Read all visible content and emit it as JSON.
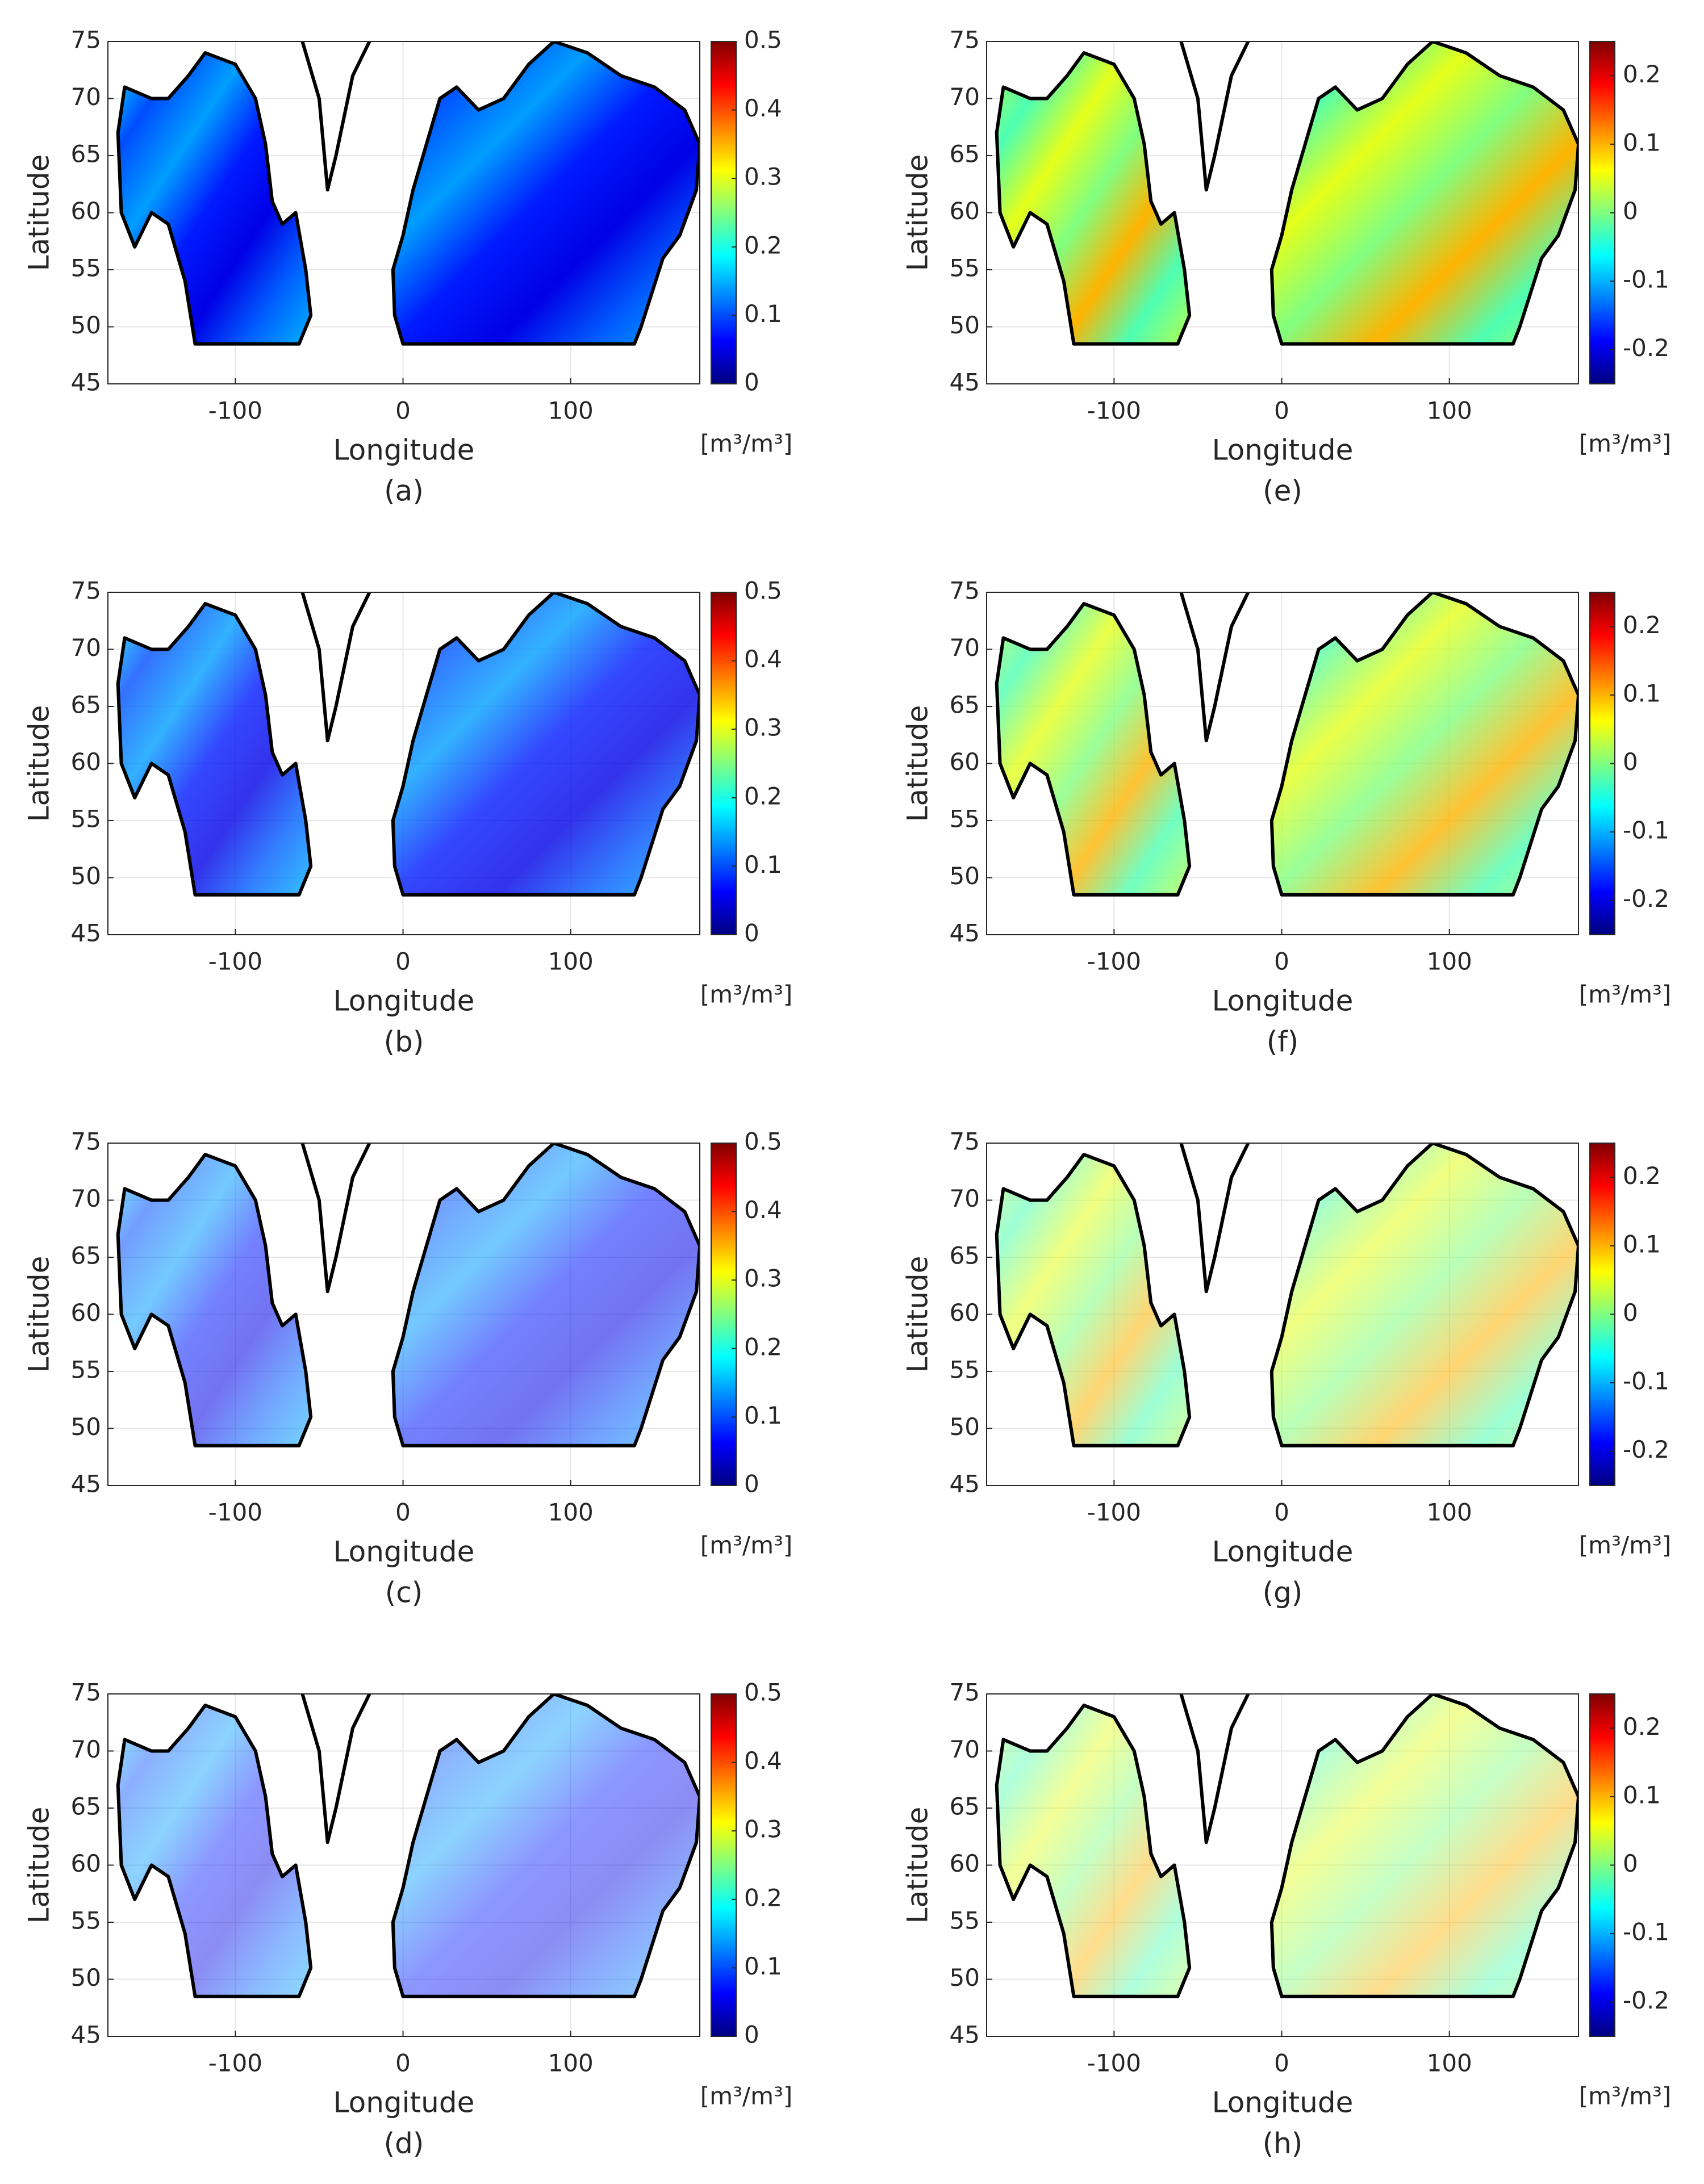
{
  "chart_data": [
    {
      "type": "heatmap",
      "label": "(a)",
      "xlabel": "Longitude",
      "ylabel": "Latitude",
      "xlim": [
        -176,
        177
      ],
      "ylim": [
        45,
        75
      ],
      "xticks": [
        -100,
        0,
        100
      ],
      "yticks": [
        45,
        50,
        55,
        60,
        65,
        70,
        75
      ],
      "grid": true,
      "colorbar": {
        "clim": [
          0,
          0.5
        ],
        "ticks": [
          0,
          0.1,
          0.2,
          0.3,
          0.4,
          0.5
        ],
        "label": "[m³/m³]",
        "colormap": "jet"
      }
    },
    {
      "type": "heatmap",
      "label": "(b)",
      "xlabel": "Longitude",
      "ylabel": "Latitude",
      "xlim": [
        -176,
        177
      ],
      "ylim": [
        45,
        75
      ],
      "xticks": [
        -100,
        0,
        100
      ],
      "yticks": [
        45,
        50,
        55,
        60,
        65,
        70,
        75
      ],
      "grid": true,
      "colorbar": {
        "clim": [
          0,
          0.5
        ],
        "ticks": [
          0,
          0.1,
          0.2,
          0.3,
          0.4,
          0.5
        ],
        "label": "[m³/m³]",
        "colormap": "jet"
      }
    },
    {
      "type": "heatmap",
      "label": "(c)",
      "xlabel": "Longitude",
      "ylabel": "Latitude",
      "xlim": [
        -176,
        177
      ],
      "ylim": [
        45,
        75
      ],
      "xticks": [
        -100,
        0,
        100
      ],
      "yticks": [
        45,
        50,
        55,
        60,
        65,
        70,
        75
      ],
      "grid": true,
      "colorbar": {
        "clim": [
          0,
          0.5
        ],
        "ticks": [
          0,
          0.1,
          0.2,
          0.3,
          0.4,
          0.5
        ],
        "label": "[m³/m³]",
        "colormap": "jet"
      }
    },
    {
      "type": "heatmap",
      "label": "(d)",
      "xlabel": "Longitude",
      "ylabel": "Latitude",
      "xlim": [
        -176,
        177
      ],
      "ylim": [
        45,
        75
      ],
      "xticks": [
        -100,
        0,
        100
      ],
      "yticks": [
        45,
        50,
        55,
        60,
        65,
        70,
        75
      ],
      "grid": true,
      "colorbar": {
        "clim": [
          0,
          0.5
        ],
        "ticks": [
          0,
          0.1,
          0.2,
          0.3,
          0.4,
          0.5
        ],
        "label": "[m³/m³]",
        "colormap": "jet"
      }
    },
    {
      "type": "heatmap",
      "label": "(e)",
      "xlabel": "Longitude",
      "ylabel": "Latitude",
      "xlim": [
        -176,
        177
      ],
      "ylim": [
        45,
        75
      ],
      "xticks": [
        -100,
        0,
        100
      ],
      "yticks": [
        45,
        50,
        55,
        60,
        65,
        70,
        75
      ],
      "grid": true,
      "colorbar": {
        "clim": [
          -0.25,
          0.25
        ],
        "ticks": [
          -0.2,
          -0.1,
          0,
          0.1,
          0.2
        ],
        "label": "[m³/m³]",
        "colormap": "jet"
      }
    },
    {
      "type": "heatmap",
      "label": "(f)",
      "xlabel": "Longitude",
      "ylabel": "Latitude",
      "xlim": [
        -176,
        177
      ],
      "ylim": [
        45,
        75
      ],
      "xticks": [
        -100,
        0,
        100
      ],
      "yticks": [
        45,
        50,
        55,
        60,
        65,
        70,
        75
      ],
      "grid": true,
      "colorbar": {
        "clim": [
          -0.25,
          0.25
        ],
        "ticks": [
          -0.2,
          -0.1,
          0,
          0.1,
          0.2
        ],
        "label": "[m³/m³]",
        "colormap": "jet"
      }
    },
    {
      "type": "heatmap",
      "label": "(g)",
      "xlabel": "Longitude",
      "ylabel": "Latitude",
      "xlim": [
        -176,
        177
      ],
      "ylim": [
        45,
        75
      ],
      "xticks": [
        -100,
        0,
        100
      ],
      "yticks": [
        45,
        50,
        55,
        60,
        65,
        70,
        75
      ],
      "grid": true,
      "colorbar": {
        "clim": [
          -0.25,
          0.25
        ],
        "ticks": [
          -0.2,
          -0.1,
          0,
          0.1,
          0.2
        ],
        "label": "[m³/m³]",
        "colormap": "jet"
      }
    },
    {
      "type": "heatmap",
      "label": "(h)",
      "xlabel": "Longitude",
      "ylabel": "Latitude",
      "xlim": [
        -176,
        177
      ],
      "ylim": [
        45,
        75
      ],
      "xticks": [
        -100,
        0,
        100
      ],
      "yticks": [
        45,
        50,
        55,
        60,
        65,
        70,
        75
      ],
      "grid": true,
      "colorbar": {
        "clim": [
          -0.25,
          0.25
        ],
        "ticks": [
          -0.2,
          -0.1,
          0,
          0.1,
          0.2
        ],
        "label": "[m³/m³]",
        "colormap": "jet"
      }
    }
  ]
}
